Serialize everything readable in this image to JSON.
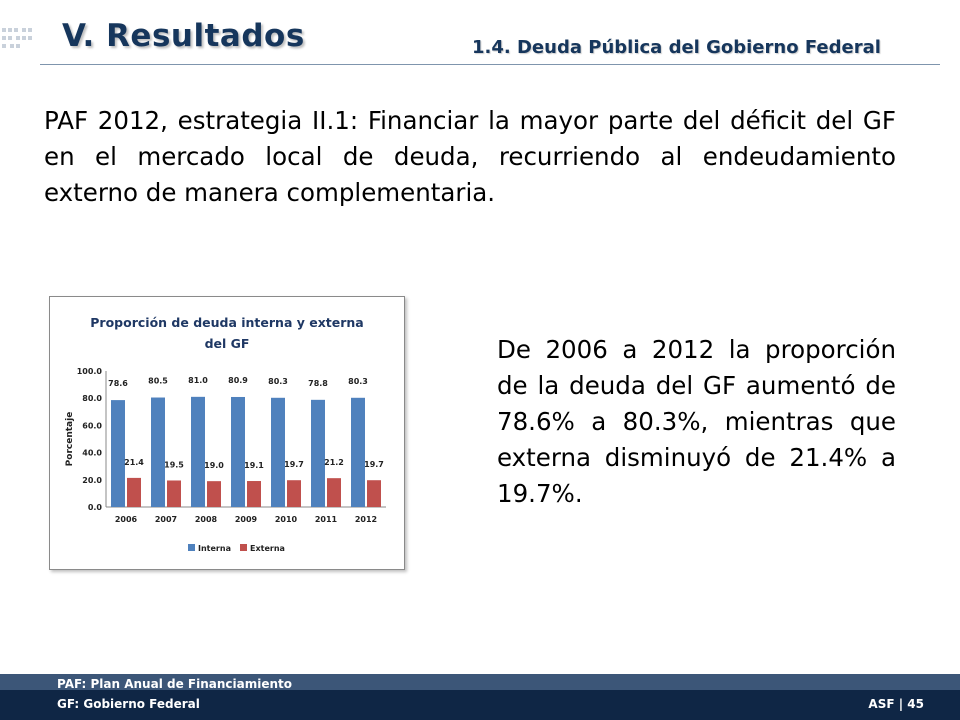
{
  "header": {
    "title": "V. Resultados",
    "subtitle": "1.4. Deuda Pública del Gobierno Federal"
  },
  "intro_text": "PAF 2012, estrategia II.1: Financiar la mayor parte del déficit del GF en el mercado local de deuda, recurriendo al endeudamiento externo de manera complementaria.",
  "description": "De 2006 a 2012 la proporción de la deuda del GF aumentó de 78.6% a 80.3%, mientras que externa disminuyó de 21.4% a 19.7%.",
  "footer": {
    "note1": "PAF: Plan Anual de Financiamiento",
    "note2": "GF: Gobierno Federal",
    "page": "ASF | 45"
  },
  "colors": {
    "title": "#16365c",
    "interna": "#4f81bd",
    "externa": "#c0504d",
    "footer": "#0f2645"
  },
  "chart_data": {
    "type": "bar",
    "title": "Proporción de deuda interna y externa del GF",
    "title_lines": [
      "Proporción de deuda interna y externa",
      "del GF"
    ],
    "xlabel": "",
    "ylabel": "Porcentaje",
    "ylim": [
      0,
      100
    ],
    "yticks": [
      "0.0",
      "20.0",
      "40.0",
      "60.0",
      "80.0",
      "100.0"
    ],
    "categories": [
      "2006",
      "2007",
      "2008",
      "2009",
      "2010",
      "2011",
      "2012"
    ],
    "series": [
      {
        "name": "Interna",
        "values": [
          78.6,
          80.5,
          81.0,
          80.9,
          80.3,
          78.8,
          80.3
        ],
        "labels": [
          "78.6",
          "80.5",
          "81.0",
          "80.9",
          "80.3",
          "78.8",
          "80.3"
        ],
        "color": "#4f81bd"
      },
      {
        "name": "Externa",
        "values": [
          21.4,
          19.5,
          19.0,
          19.1,
          19.7,
          21.2,
          19.7
        ],
        "labels": [
          "21.4",
          "19.5",
          "19.0",
          "19.1",
          "19.7",
          "21.2",
          "19.7"
        ],
        "color": "#c0504d"
      }
    ],
    "grid": false,
    "legend": "bottom"
  }
}
